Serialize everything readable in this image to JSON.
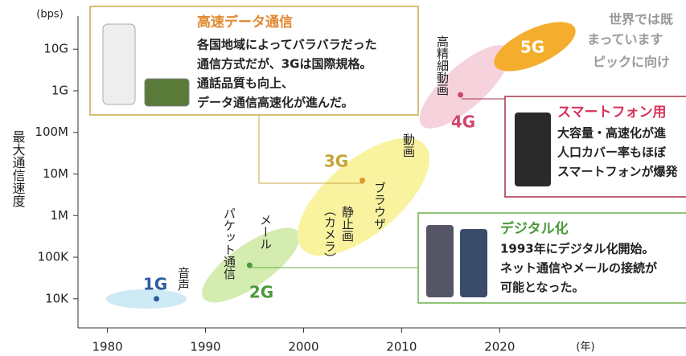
{
  "chart_data": {
    "type": "scatter",
    "y_label": "最大通信速度",
    "y_unit": "(bps)",
    "x_unit": "(年)",
    "log_y": true,
    "xlim": [
      1977,
      2039
    ],
    "xticks": [
      1980,
      1990,
      2000,
      2010,
      2020
    ],
    "ylim": [
      2000,
      50000000000
    ],
    "yticks": [
      {
        "value": 10000,
        "label": "10K"
      },
      {
        "value": 100000,
        "label": "100K"
      },
      {
        "value": 1000000,
        "label": "1M"
      },
      {
        "value": 10000000,
        "label": "10M"
      },
      {
        "value": 100000000,
        "label": "100M"
      },
      {
        "value": 1000000000,
        "label": "1G"
      },
      {
        "value": 10000000000,
        "label": "10G"
      }
    ],
    "generations": [
      "1G",
      "2G",
      "3G",
      "4G",
      "5G"
    ],
    "x": [
      1985,
      1994.5,
      2006,
      2016
    ],
    "values": [
      10000,
      64000,
      7000000,
      800000000
    ],
    "colors": [
      "#2f5a9e",
      "#4a9a3a",
      "#e0962f",
      "#d0466f"
    ],
    "annotations": [
      "音声",
      "パケット通信",
      "メール",
      "静止画",
      "（カメラ）",
      "ブラウザ",
      "動画",
      "高精細動画"
    ],
    "callouts": [
      {
        "title": "高速データ通信",
        "lines": [
          "各国地域によってバラバラだった",
          "通信方式だが、3Gは国際規格。",
          "通話品質も向上、",
          "データ通信高速化が進んだ。"
        ]
      },
      {
        "title": "スマートフォン用",
        "lines": [
          "大容量・高速化が進",
          "人口カバー率もほぼ",
          "スマートフォンが爆発"
        ]
      },
      {
        "title": "デジタル化",
        "lines": [
          "1993年にデジタル化開始。",
          "ネット通信やメールの接続が",
          "可能となった。"
        ]
      }
    ],
    "side_text": [
      "世界では既",
      "まっています",
      "ピックに向け"
    ]
  }
}
